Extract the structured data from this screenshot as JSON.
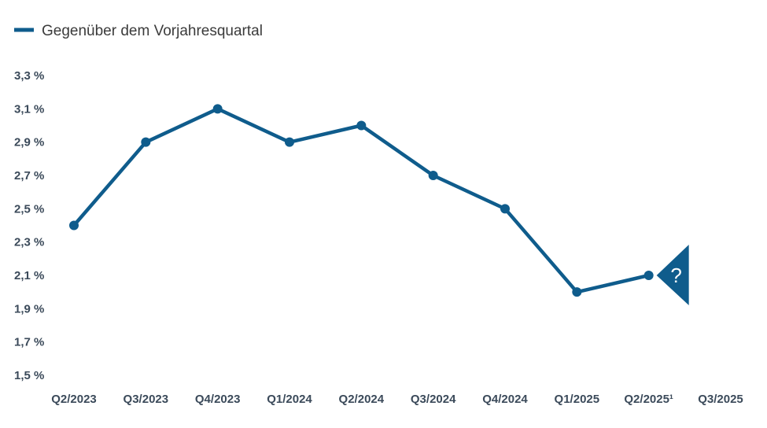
{
  "colors": {
    "series": "#0f5c8c",
    "text": "#3b4a5a"
  },
  "annotation": {
    "icon": "question-mark-triangle-icon",
    "symbol": "?"
  },
  "chart_data": {
    "type": "line",
    "title": "",
    "xlabel": "",
    "ylabel": "",
    "categories": [
      "Q2/2023",
      "Q3/2023",
      "Q4/2023",
      "Q1/2024",
      "Q2/2024",
      "Q3/2024",
      "Q4/2024",
      "Q1/2025",
      "Q2/2025¹",
      "Q3/2025"
    ],
    "series": [
      {
        "name": "Gegenüber dem Vorjahresquartal",
        "values": [
          2.4,
          2.9,
          3.1,
          2.9,
          3.0,
          2.7,
          2.5,
          2.0,
          2.1,
          null
        ]
      }
    ],
    "ylim": [
      1.5,
      3.3
    ],
    "yticks": [
      "1,5 %",
      "1,7 %",
      "1,9 %",
      "2,1 %",
      "2,3 %",
      "2,5 %",
      "2,7 %",
      "2,9 %",
      "3,1 %",
      "3,3 %"
    ],
    "ytick_values": [
      1.5,
      1.7,
      1.9,
      2.1,
      2.3,
      2.5,
      2.7,
      2.9,
      3.1,
      3.3
    ],
    "grid": false,
    "legend_position": "top-left"
  }
}
